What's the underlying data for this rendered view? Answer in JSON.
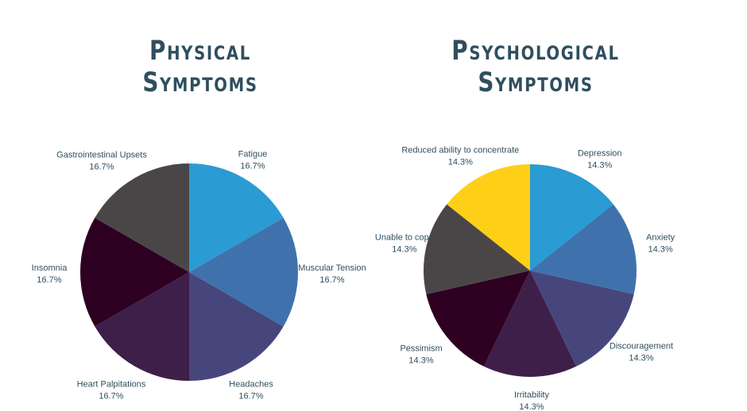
{
  "titles": {
    "physical": [
      "Physical",
      "Symptoms"
    ],
    "psychological": [
      "Psychological",
      "Symptoms"
    ]
  },
  "chart_data": [
    {
      "type": "pie",
      "title": "Physical Symptoms",
      "slices": [
        {
          "label": "Fatigue",
          "value": 16.7,
          "pct": "16.7%",
          "color": "#2a9bd3"
        },
        {
          "label": "Muscular Tension",
          "value": 16.7,
          "pct": "16.7%",
          "color": "#3f72ad"
        },
        {
          "label": "Headaches",
          "value": 16.7,
          "pct": "16.7%",
          "color": "#47467c"
        },
        {
          "label": "Heart Palpitations",
          "value": 16.7,
          "pct": "16.7%",
          "color": "#3e1f4a"
        },
        {
          "label": "Insomnia",
          "value": 16.7,
          "pct": "16.7%",
          "color": "#2e0022"
        },
        {
          "label": "Gastrointestinal Upsets",
          "value": 16.7,
          "pct": "16.7%",
          "color": "#4a4647"
        }
      ]
    },
    {
      "type": "pie",
      "title": "Psychological Symptoms",
      "slices": [
        {
          "label": "Depression",
          "value": 14.3,
          "pct": "14.3%",
          "color": "#2a9bd3"
        },
        {
          "label": "Anxiety",
          "value": 14.3,
          "pct": "14.3%",
          "color": "#3f72ad"
        },
        {
          "label": "Discouragement",
          "value": 14.3,
          "pct": "14.3%",
          "color": "#47467c"
        },
        {
          "label": "Irritability",
          "value": 14.3,
          "pct": "14.3%",
          "color": "#3e1f4a"
        },
        {
          "label": "Pessimism",
          "value": 14.3,
          "pct": "14.3%",
          "color": "#2e0022"
        },
        {
          "label": "Unable to cope",
          "value": 14.3,
          "pct": "14.3%",
          "color": "#4a4647"
        },
        {
          "label": "Reduced ability to concentrate",
          "value": 14.3,
          "pct": "14.3%",
          "color": "#fdd017"
        }
      ]
    }
  ]
}
